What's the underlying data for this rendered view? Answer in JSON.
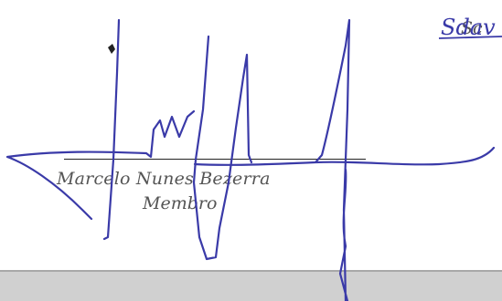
{
  "signer": {
    "name": "Marcelo Nunes Bezerra",
    "role": "Membro"
  },
  "corner_signer": {
    "signature_text": "Sdav",
    "role_fragment": "Sc"
  },
  "ink_color": "#3a3aa8",
  "text_color": "#555555",
  "band_color": "#d0d0d0"
}
